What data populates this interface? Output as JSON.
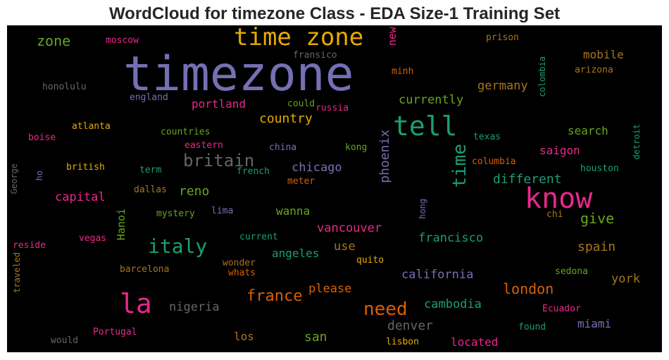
{
  "chart_data": {
    "type": "wordcloud",
    "title": "WordCloud for timezone Class - EDA Size-1 Training Set",
    "background": "#000000",
    "palette": "Dark2",
    "words": [
      {
        "text": "timezone",
        "color": "#7570b3"
      },
      {
        "text": "time zone",
        "color": "#e6ab02"
      },
      {
        "text": "know",
        "color": "#e7298a"
      },
      {
        "text": "tell",
        "color": "#1b9e77"
      },
      {
        "text": "la",
        "color": "#e7298a"
      },
      {
        "text": "italy",
        "color": "#1b9e77"
      },
      {
        "text": "time",
        "color": "#1b9e77"
      },
      {
        "text": "need",
        "color": "#d95f02"
      },
      {
        "text": "britain",
        "color": "#666666"
      },
      {
        "text": "france",
        "color": "#d95f02"
      },
      {
        "text": "london",
        "color": "#d95f02"
      },
      {
        "text": "phoenix",
        "color": "#7570b3"
      },
      {
        "text": "zone",
        "color": "#66a61e"
      },
      {
        "text": "country",
        "color": "#e6ab02"
      },
      {
        "text": "germany",
        "color": "#a6761d"
      },
      {
        "text": "mobile",
        "color": "#a6761d"
      },
      {
        "text": "currently",
        "color": "#66a61e"
      },
      {
        "text": "portland",
        "color": "#e7298a"
      },
      {
        "text": "search",
        "color": "#66a61e"
      },
      {
        "text": "saigon",
        "color": "#e7298a"
      },
      {
        "text": "chicago",
        "color": "#7570b3"
      },
      {
        "text": "different",
        "color": "#1b9e77"
      },
      {
        "text": "reno",
        "color": "#66a61e"
      },
      {
        "text": "capital",
        "color": "#e7298a"
      },
      {
        "text": "give",
        "color": "#66a61e"
      },
      {
        "text": "wanna",
        "color": "#66a61e"
      },
      {
        "text": "vancouver",
        "color": "#e7298a"
      },
      {
        "text": "francisco",
        "color": "#1b9e77"
      },
      {
        "text": "use",
        "color": "#a6761d"
      },
      {
        "text": "spain",
        "color": "#a6761d"
      },
      {
        "text": "angeles",
        "color": "#1b9e77"
      },
      {
        "text": "california",
        "color": "#7570b3"
      },
      {
        "text": "please",
        "color": "#d95f02"
      },
      {
        "text": "york",
        "color": "#a6761d"
      },
      {
        "text": "nigeria",
        "color": "#666666"
      },
      {
        "text": "cambodia",
        "color": "#1b9e77"
      },
      {
        "text": "denver",
        "color": "#666666"
      },
      {
        "text": "miami",
        "color": "#7570b3"
      },
      {
        "text": "los",
        "color": "#a6761d"
      },
      {
        "text": "san",
        "color": "#66a61e"
      },
      {
        "text": "located",
        "color": "#e7298a"
      },
      {
        "text": "new",
        "color": "#e7298a"
      },
      {
        "text": "Hanoi",
        "color": "#66a61e"
      },
      {
        "text": "moscow",
        "color": "#e7298a"
      },
      {
        "text": "fransico",
        "color": "#666666"
      },
      {
        "text": "prison",
        "color": "#a6761d"
      },
      {
        "text": "minh",
        "color": "#d95f02"
      },
      {
        "text": "arizona",
        "color": "#a6761d"
      },
      {
        "text": "colombia",
        "color": "#1b9e77"
      },
      {
        "text": "honolulu",
        "color": "#666666"
      },
      {
        "text": "england",
        "color": "#7570b3"
      },
      {
        "text": "could",
        "color": "#66a61e"
      },
      {
        "text": "russia",
        "color": "#e7298a"
      },
      {
        "text": "atlanta",
        "color": "#e6ab02"
      },
      {
        "text": "boise",
        "color": "#e7298a"
      },
      {
        "text": "countries",
        "color": "#66a61e"
      },
      {
        "text": "eastern",
        "color": "#e7298a"
      },
      {
        "text": "china",
        "color": "#7570b3"
      },
      {
        "text": "kong",
        "color": "#66a61e"
      },
      {
        "text": "texas",
        "color": "#1b9e77"
      },
      {
        "text": "detroit",
        "color": "#1b9e77"
      },
      {
        "text": "british",
        "color": "#e6ab02"
      },
      {
        "text": "term",
        "color": "#1b9e77"
      },
      {
        "text": "french",
        "color": "#1b9e77"
      },
      {
        "text": "columbia",
        "color": "#d95f02"
      },
      {
        "text": "houston",
        "color": "#1b9e77"
      },
      {
        "text": "George",
        "color": "#666666"
      },
      {
        "text": "ho",
        "color": "#7570b3"
      },
      {
        "text": "dallas",
        "color": "#a6761d"
      },
      {
        "text": "meter",
        "color": "#d95f02"
      },
      {
        "text": "mystery",
        "color": "#66a61e"
      },
      {
        "text": "lima",
        "color": "#7570b3"
      },
      {
        "text": "hong",
        "color": "#7570b3"
      },
      {
        "text": "chi",
        "color": "#a6761d"
      },
      {
        "text": "current",
        "color": "#1b9e77"
      },
      {
        "text": "reside",
        "color": "#e7298a"
      },
      {
        "text": "vegas",
        "color": "#e7298a"
      },
      {
        "text": "wonder",
        "color": "#a6761d"
      },
      {
        "text": "quito",
        "color": "#e6ab02"
      },
      {
        "text": "traveled",
        "color": "#a6761d"
      },
      {
        "text": "barcelona",
        "color": "#a6761d"
      },
      {
        "text": "whats",
        "color": "#d95f02"
      },
      {
        "text": "sedona",
        "color": "#66a61e"
      },
      {
        "text": "Ecuador",
        "color": "#e7298a"
      },
      {
        "text": "found",
        "color": "#1b9e77"
      },
      {
        "text": "Portugal",
        "color": "#e7298a"
      },
      {
        "text": "would",
        "color": "#666666"
      },
      {
        "text": "lisbon",
        "color": "#e6ab02"
      }
    ]
  }
}
